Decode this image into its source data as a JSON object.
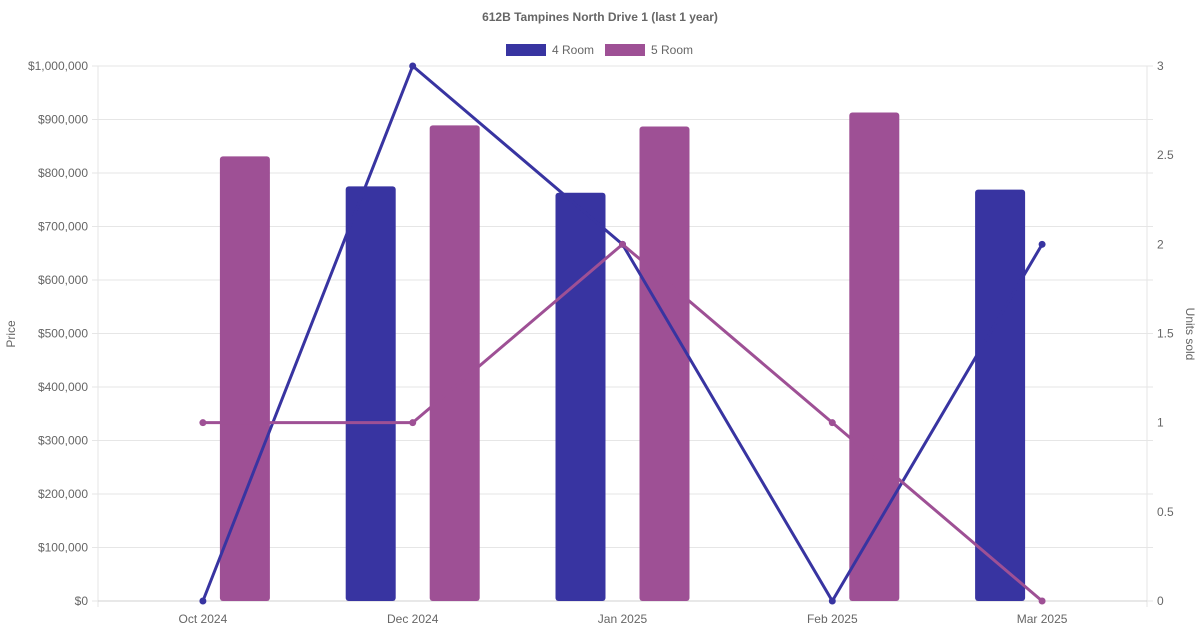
{
  "chart_data": {
    "type": "bar",
    "title": "612B Tampines North Drive 1 (last 1 year)",
    "categories": [
      "Oct 2024",
      "Dec 2024",
      "Jan 2025",
      "Feb 2025",
      "Mar 2025"
    ],
    "legend": {
      "position": "top",
      "entries": [
        "4 Room",
        "5 Room"
      ]
    },
    "series": [
      {
        "name": "4 Room",
        "kind": "bar",
        "axis": "left",
        "color": "#3834a1",
        "values": [
          null,
          775000,
          763000,
          null,
          769000
        ]
      },
      {
        "name": "5 Room",
        "kind": "bar",
        "axis": "left",
        "color": "#9e5095",
        "values": [
          831000,
          889000,
          887000,
          913000,
          null
        ]
      },
      {
        "name": "4 Room",
        "kind": "line",
        "axis": "right",
        "color": "#3834a1",
        "values": [
          0,
          3,
          2,
          0,
          2
        ]
      },
      {
        "name": "5 Room",
        "kind": "line",
        "axis": "right",
        "color": "#9e5095",
        "values": [
          1,
          1,
          2,
          1,
          0
        ]
      }
    ],
    "y_left": {
      "label": "Price",
      "ylim": [
        0,
        1000000
      ],
      "ticks": [
        "$0",
        "$100,000",
        "$200,000",
        "$300,000",
        "$400,000",
        "$500,000",
        "$600,000",
        "$700,000",
        "$800,000",
        "$900,000",
        "$1,000,000"
      ]
    },
    "y_right": {
      "label": "Units sold",
      "ylim": [
        0,
        3
      ],
      "ticks": [
        "0",
        "0.5",
        "1",
        "1.5",
        "2",
        "2.5",
        "3"
      ]
    },
    "grid": true
  }
}
